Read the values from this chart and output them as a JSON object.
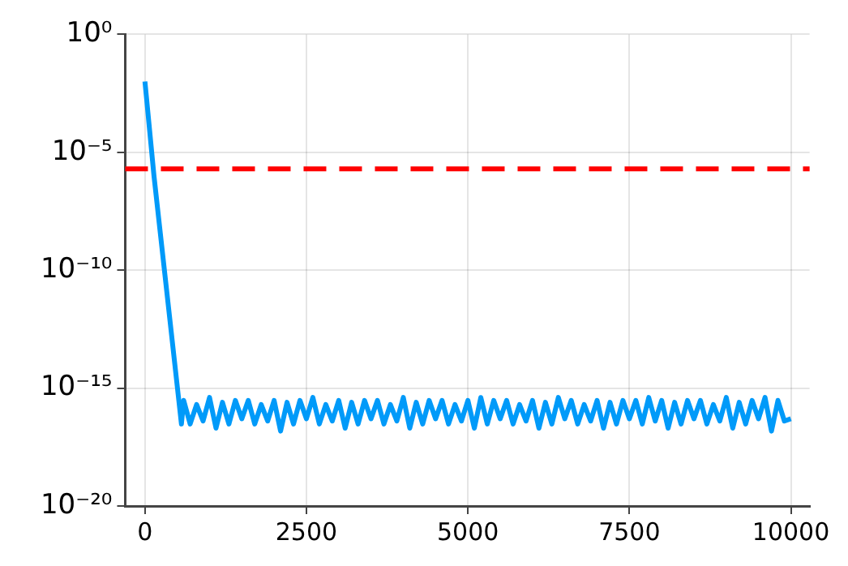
{
  "chart_data": {
    "type": "line",
    "series": [
      {
        "color": "#009af9",
        "x": [
          0,
          140,
          565,
          600,
          700,
          800,
          900,
          1000,
          1100,
          1200,
          1300,
          1400,
          1500,
          1600,
          1700,
          1800,
          1900,
          2000,
          2100,
          2200,
          2300,
          2400,
          2500,
          2600,
          2700,
          2800,
          2900,
          3000,
          3100,
          3200,
          3300,
          3400,
          3500,
          3600,
          3700,
          3800,
          3900,
          4000,
          4100,
          4200,
          4300,
          4400,
          4500,
          4600,
          4700,
          4800,
          4900,
          5000,
          5100,
          5200,
          5300,
          5400,
          5500,
          5600,
          5700,
          5800,
          5900,
          6000,
          6100,
          6200,
          6300,
          6400,
          6500,
          6600,
          6700,
          6800,
          6900,
          7000,
          7100,
          7200,
          7300,
          7400,
          7500,
          7600,
          7700,
          7800,
          7900,
          8000,
          8100,
          8200,
          8300,
          8400,
          8500,
          8600,
          8700,
          8800,
          8900,
          9000,
          9100,
          9200,
          9300,
          9400,
          9500,
          9600,
          9700,
          9800,
          9900,
          10000
        ],
        "values": [
          0.01,
          1e-06,
          3e-17,
          3e-16,
          3e-17,
          2e-16,
          4e-17,
          4e-16,
          2e-17,
          2.5e-16,
          3e-17,
          3e-16,
          5e-17,
          3e-16,
          3e-17,
          2e-16,
          4e-17,
          3e-16,
          1.5e-17,
          2.5e-16,
          3e-17,
          3e-16,
          5e-17,
          4e-16,
          3e-17,
          2e-16,
          4e-17,
          3e-16,
          2e-17,
          2.5e-16,
          3e-17,
          3e-16,
          5e-17,
          3e-16,
          3e-17,
          2e-16,
          4e-17,
          4e-16,
          2e-17,
          2.5e-16,
          3e-17,
          3e-16,
          5e-17,
          3e-16,
          3e-17,
          2e-16,
          4e-17,
          3e-16,
          2e-17,
          4e-16,
          3e-17,
          3e-16,
          5e-17,
          3e-16,
          3e-17,
          2e-16,
          4e-17,
          3e-16,
          2e-17,
          2.5e-16,
          3e-17,
          4e-16,
          5e-17,
          3e-16,
          3e-17,
          2e-16,
          4e-17,
          3e-16,
          2e-17,
          2.5e-16,
          3e-17,
          3e-16,
          5e-17,
          3e-16,
          3e-17,
          4e-16,
          4e-17,
          3e-16,
          2e-17,
          2.5e-16,
          3e-17,
          3e-16,
          5e-17,
          3e-16,
          3e-17,
          2e-16,
          4e-17,
          4e-16,
          2e-17,
          2.5e-16,
          3e-17,
          3e-16,
          5e-17,
          4e-16,
          1.5e-17,
          3e-16,
          4e-17,
          5e-17
        ]
      }
    ],
    "ref_lines": [
      {
        "axis": "y",
        "value": 2e-06,
        "color": "#ff0000",
        "line_style": "dashed"
      }
    ],
    "log": "y",
    "xlim": [
      -305,
      10290
    ],
    "xticks": [
      0,
      2500,
      5000,
      7500,
      10000
    ],
    "ylim": [
      1e-20,
      1
    ],
    "yticks": [
      {
        "value": 1,
        "label": "10⁰"
      },
      {
        "value": 1e-05,
        "label": "10⁻⁵"
      },
      {
        "value": 1e-10,
        "label": "10⁻¹⁰"
      },
      {
        "value": 1e-15,
        "label": "10⁻¹⁵"
      },
      {
        "value": 1e-20,
        "label": "10⁻²⁰"
      }
    ],
    "grid": true,
    "legend": false,
    "marker": "none",
    "line_style": "solid"
  }
}
